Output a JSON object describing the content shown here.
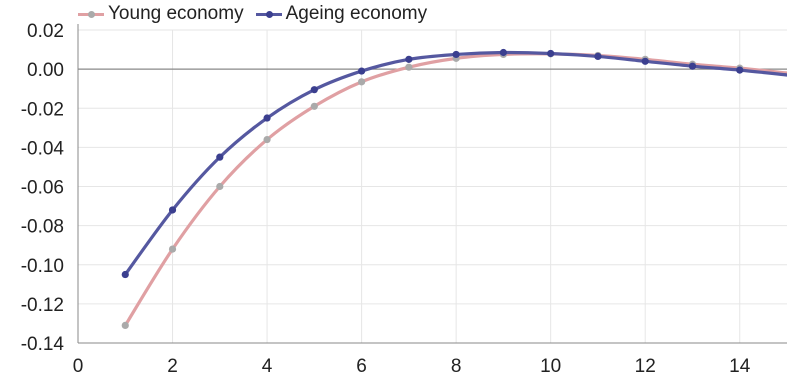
{
  "chart_data": {
    "type": "line",
    "title": "",
    "xlabel": "",
    "ylabel": "",
    "xlim": [
      0,
      15
    ],
    "ylim": [
      -0.14,
      0.02
    ],
    "x_ticks": [
      0,
      2,
      4,
      6,
      8,
      10,
      12,
      14
    ],
    "y_ticks": [
      0.02,
      0.0,
      -0.02,
      -0.04,
      -0.06,
      -0.08,
      -0.1,
      -0.12,
      -0.14
    ],
    "x_tick_labels": [
      "0",
      "2",
      "4",
      "6",
      "8",
      "10",
      "12",
      "14"
    ],
    "y_tick_labels": [
      "0.02",
      "0.00",
      "-0.02",
      "-0.04",
      "-0.06",
      "-0.08",
      "-0.10",
      "-0.12",
      "-0.14"
    ],
    "grid": true,
    "legend_position": "top-left",
    "x": [
      1,
      2,
      3,
      4,
      5,
      6,
      7,
      8,
      9,
      10,
      11,
      12,
      13,
      14,
      15
    ],
    "series": [
      {
        "name": "Young economy",
        "line_color": "#e0a0a3",
        "marker_color": "#aaaaaa",
        "values": [
          -0.131,
          -0.092,
          -0.06,
          -0.036,
          -0.019,
          -0.0065,
          0.001,
          0.0055,
          0.0075,
          0.0078,
          0.007,
          0.005,
          0.0025,
          0.0005,
          -0.002
        ]
      },
      {
        "name": "Ageing economy",
        "line_color": "#5558a0",
        "marker_color": "#3b3f8f",
        "values": [
          -0.105,
          -0.072,
          -0.045,
          -0.025,
          -0.0105,
          -0.001,
          0.005,
          0.0075,
          0.0085,
          0.008,
          0.0065,
          0.004,
          0.0015,
          -0.0005,
          -0.003
        ]
      }
    ]
  }
}
